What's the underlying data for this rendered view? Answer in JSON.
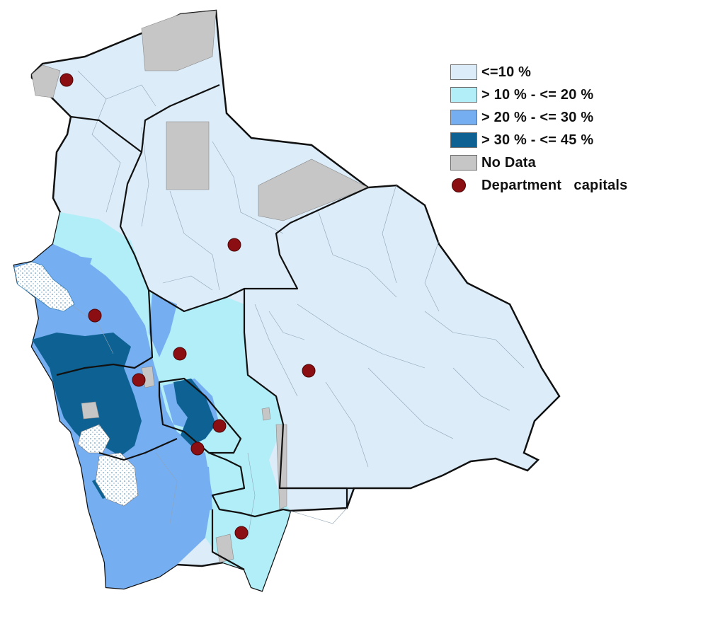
{
  "legend": {
    "items": [
      {
        "label": "<=10 %",
        "color": "#dcecf9"
      },
      {
        "label": "> 10 % - <= 20 %",
        "color": "#b2eef7"
      },
      {
        "label": "> 20 % - <= 30 %",
        "color": "#76aef2"
      },
      {
        "label": "> 30 % - <= 45 %",
        "color": "#0e6293"
      },
      {
        "label": "No Data",
        "color": "#c6c6c6"
      }
    ],
    "capitals_label": "Department   capitals",
    "capital_color": "#8b0f12"
  },
  "capitals_count": 9
}
